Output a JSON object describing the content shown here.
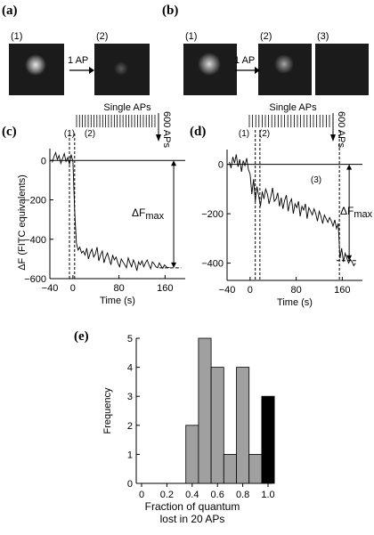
{
  "panels": {
    "a": {
      "label": "(a)",
      "frames": [
        "(1)",
        "(2)"
      ],
      "stimulus": "1 AP"
    },
    "b": {
      "label": "(b)",
      "frames": [
        "(1)",
        "(2)",
        "(3)"
      ],
      "stimulus": "1 AP"
    },
    "c": {
      "label": "(c)"
    },
    "d": {
      "label": "(d)"
    },
    "e": {
      "label": "(e)"
    }
  },
  "chart_data": [
    {
      "panel": "c",
      "type": "line",
      "xlabel": "Time (s)",
      "ylabel": "ΔF (FITC equivalents)",
      "xticks": [
        "−40",
        "0",
        "80",
        "160"
      ],
      "yticks": [
        "0",
        "−200",
        "−400",
        "−600"
      ],
      "xlim": [
        -40,
        195
      ],
      "ylim": [
        -600,
        60
      ],
      "stim_top": "Single APs",
      "stim_right": "600 APs",
      "markers": [
        "(1)",
        "(2)"
      ],
      "annotation": "ΔF",
      "annotation_sub": "max",
      "x": [
        -36,
        -33,
        -30,
        -27,
        -24,
        -21,
        -18,
        -15,
        -12,
        -9,
        -6,
        -3,
        0,
        3,
        6,
        9,
        12,
        15,
        18,
        21,
        24,
        27,
        30,
        33,
        36,
        39,
        42,
        45,
        48,
        51,
        54,
        57,
        60,
        63,
        66,
        69,
        72,
        75,
        78,
        81,
        84,
        87,
        90,
        93,
        96,
        99,
        102,
        105,
        108,
        111,
        114,
        117,
        120,
        123,
        126,
        129,
        132,
        135,
        138,
        141,
        144,
        147,
        150,
        153,
        156,
        159,
        162,
        165,
        168
      ],
      "y": [
        -10,
        18,
        40,
        5,
        25,
        -15,
        10,
        35,
        -5,
        15,
        -20,
        30,
        -5,
        -250,
        -420,
        -455,
        -440,
        -470,
        -460,
        -480,
        -445,
        -500,
        -470,
        -450,
        -490,
        -475,
        -440,
        -510,
        -480,
        -460,
        -520,
        -490,
        -470,
        -500,
        -530,
        -480,
        -505,
        -490,
        -520,
        -540,
        -500,
        -515,
        -530,
        -545,
        -495,
        -520,
        -540,
        -505,
        -525,
        -560,
        -515,
        -530,
        -510,
        -540,
        -520,
        -505,
        -530,
        -550,
        -515,
        -525,
        -540,
        -545,
        -520,
        -535,
        -548,
        -530,
        -540,
        -545,
        -542
      ]
    },
    {
      "panel": "d",
      "type": "line",
      "xlabel": "Time (s)",
      "xticks": [
        "−40",
        "0",
        "80",
        "160"
      ],
      "yticks": [
        "0",
        "−200",
        "−400"
      ],
      "xlim": [
        -40,
        195
      ],
      "ylim": [
        -470,
        60
      ],
      "stim_top": "Single APs",
      "stim_right": "600 APs",
      "markers": [
        "(1)",
        "(2)",
        "(3)"
      ],
      "annotation": "ΔF",
      "annotation_sub": "max",
      "x": [
        -36,
        -33,
        -30,
        -27,
        -24,
        -21,
        -18,
        -15,
        -12,
        -9,
        -6,
        -3,
        0,
        3,
        6,
        9,
        12,
        15,
        18,
        21,
        24,
        27,
        30,
        33,
        36,
        39,
        42,
        45,
        48,
        51,
        54,
        57,
        60,
        63,
        66,
        69,
        72,
        75,
        78,
        81,
        84,
        87,
        90,
        93,
        96,
        99,
        102,
        105,
        108,
        111,
        114,
        117,
        120,
        123,
        126,
        129,
        132,
        135,
        138,
        141,
        144,
        147,
        150,
        153,
        156,
        159,
        162,
        165,
        168,
        171,
        174,
        177,
        180,
        183
      ],
      "y": [
        10,
        -15,
        30,
        5,
        40,
        -10,
        20,
        -30,
        15,
        -5,
        25,
        -20,
        -40,
        -120,
        -60,
        -150,
        -90,
        -130,
        -170,
        -110,
        -140,
        -100,
        -120,
        -160,
        -130,
        -95,
        -150,
        -140,
        -115,
        -170,
        -135,
        -180,
        -145,
        -125,
        -190,
        -155,
        -140,
        -200,
        -160,
        -175,
        -150,
        -210,
        -170,
        -185,
        -160,
        -220,
        -175,
        -190,
        -205,
        -180,
        -200,
        -230,
        -190,
        -210,
        -240,
        -205,
        -220,
        -235,
        -215,
        -230,
        -250,
        -225,
        -260,
        -240,
        -380,
        -340,
        -395,
        -360,
        -380,
        -400,
        -385,
        -395,
        -410,
        -400
      ]
    },
    {
      "panel": "e",
      "type": "bar",
      "xlabel": "Fraction of quantum lost in 20 APs",
      "xlabel_lines": [
        "Fraction of quantum",
        "lost in 20 APs"
      ],
      "ylabel": "Frequency",
      "xticks": [
        "0",
        "0.2",
        "0.4",
        "0.6",
        "0.8",
        "1.0"
      ],
      "yticks": [
        "0",
        "1",
        "2",
        "3",
        "4",
        "5"
      ],
      "xlim": [
        -0.05,
        1.05
      ],
      "ylim": [
        0,
        5
      ],
      "bin_width": 0.1,
      "bins": [
        0.4,
        0.5,
        0.6,
        0.7,
        0.8,
        0.9,
        1.0
      ],
      "values": [
        2,
        5,
        4,
        1,
        4,
        1,
        3
      ],
      "colors": [
        "#a0a0a0",
        "#a0a0a0",
        "#a0a0a0",
        "#a0a0a0",
        "#a0a0a0",
        "#a0a0a0",
        "#000000"
      ]
    }
  ]
}
